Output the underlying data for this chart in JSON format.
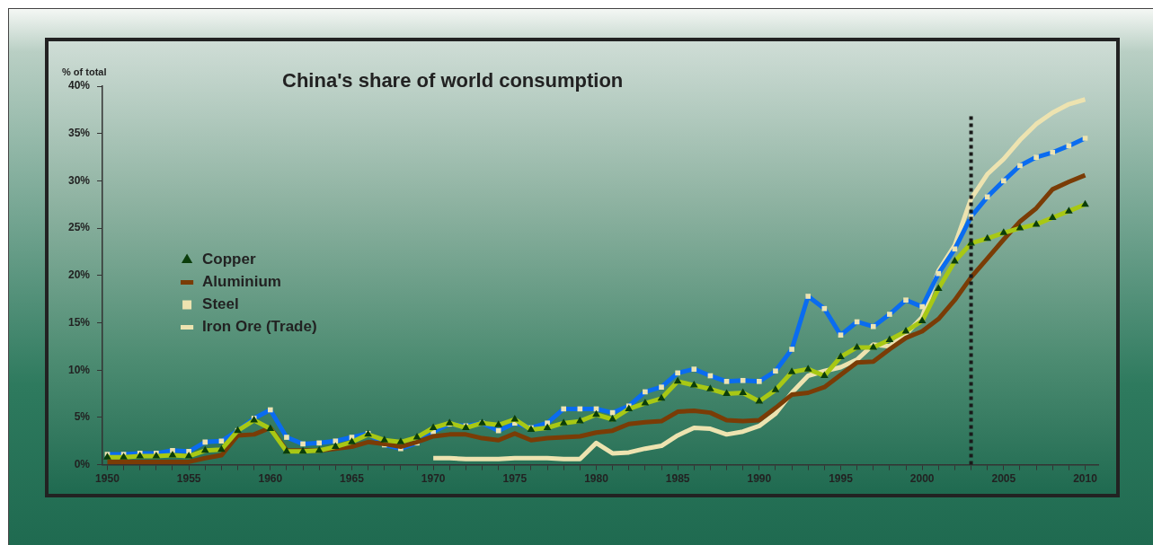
{
  "chart_data": {
    "type": "line",
    "title": "China's share of world consumption",
    "ylabel": "% of total",
    "x": [
      1950,
      1951,
      1952,
      1953,
      1954,
      1955,
      1956,
      1957,
      1958,
      1959,
      1960,
      1961,
      1962,
      1963,
      1964,
      1965,
      1966,
      1967,
      1968,
      1969,
      1970,
      1971,
      1972,
      1973,
      1974,
      1975,
      1976,
      1977,
      1978,
      1979,
      1980,
      1981,
      1982,
      1983,
      1984,
      1985,
      1986,
      1987,
      1988,
      1989,
      1990,
      1991,
      1992,
      1993,
      1994,
      1995,
      1996,
      1997,
      1998,
      1999,
      2000,
      2001,
      2002,
      2003,
      2004,
      2005,
      2006,
      2007,
      2008,
      2009,
      2010
    ],
    "series": [
      {
        "name": "Copper",
        "color": "#a8c814",
        "marker": "triangle",
        "colors": [
          "#0b3d0b",
          "#0b3d0b",
          "#0b3d0b",
          "#0b3d0b",
          "#0b3d0b",
          "#0b3d0b",
          "#0b3d0b",
          "#0b3d0b",
          "#0b3d0b",
          "#0b3d0b",
          "#0b3d0b",
          "#0b3d0b",
          "#0b3d0b",
          "#0b3d0b",
          "#0b3d0b",
          "#0b3d0b",
          "#0b3d0b",
          "#0b3d0b",
          "#0b3d0b",
          "#0b3d0b",
          "#0b3d0b",
          "#0b3d0b",
          "#0b3d0b",
          "#0b3d0b",
          "#0b3d0b",
          "#0b3d0b",
          "#0b3d0b",
          "#0b3d0b",
          "#0b3d0b",
          "#0b3d0b",
          "#0b3d0b",
          "#0b3d0b",
          "#0b3d0b",
          "#0b3d0b",
          "#0b3d0b",
          "#0b3d0b",
          "#0b3d0b",
          "#0b3d0b",
          "#0b3d0b",
          "#0b3d0b",
          "#0b3d0b",
          "#0b3d0b",
          "#0b3d0b",
          "#0b3d0b",
          "#0b3d0b",
          "#0b3d0b",
          "#0b3d0b",
          "#0b3d0b",
          "#0b3d0b",
          "#0b3d0b",
          "#0b3d0b",
          "#0b3d0b",
          "#0b3d0b",
          "#0b3d0b",
          "#0b3d0b",
          "#0b3d0b",
          "#0b3d0b",
          "#0b3d0b",
          "#0b3d0b",
          "#0b3d0b",
          "#0b3d0b"
        ],
        "values": [
          0.8,
          0.8,
          0.9,
          0.9,
          1.0,
          0.9,
          1.5,
          1.6,
          3.6,
          4.7,
          3.8,
          1.4,
          1.4,
          1.5,
          1.9,
          2.4,
          3.2,
          2.6,
          2.4,
          2.9,
          3.9,
          4.4,
          3.9,
          4.4,
          4.2,
          4.8,
          3.7,
          3.9,
          4.4,
          4.6,
          5.3,
          4.8,
          5.9,
          6.5,
          7.0,
          8.8,
          8.4,
          8.0,
          7.5,
          7.6,
          6.7,
          7.9,
          9.8,
          10.1,
          9.4,
          11.4,
          12.4,
          12.4,
          13.2,
          14.1,
          15.2,
          18.6,
          21.5,
          23.4,
          23.9,
          24.5,
          25.0,
          25.4,
          26.1,
          26.8,
          27.5
        ]
      },
      {
        "name": "Aluminium",
        "color": "#7a3c06",
        "marker": "none",
        "values": [
          0.3,
          0.3,
          0.3,
          0.3,
          0.3,
          0.3,
          0.7,
          1.0,
          3.1,
          3.2,
          3.9,
          1.5,
          1.5,
          1.5,
          1.7,
          1.9,
          2.4,
          2.2,
          1.9,
          2.4,
          3.0,
          3.2,
          3.2,
          2.8,
          2.6,
          3.3,
          2.6,
          2.8,
          2.9,
          3.0,
          3.4,
          3.6,
          4.3,
          4.5,
          4.6,
          5.6,
          5.7,
          5.5,
          4.7,
          4.6,
          4.7,
          6.0,
          7.4,
          7.6,
          8.2,
          9.5,
          10.8,
          10.9,
          12.2,
          13.4,
          14.1,
          15.4,
          17.4,
          19.8,
          21.8,
          23.8,
          25.7,
          27.1,
          29.1,
          29.9,
          30.6
        ]
      },
      {
        "name": "Steel",
        "color": "#0a6cf0",
        "marker": "square",
        "colors": [
          "#ede3b0",
          "#ede3b0",
          "#ede3b0",
          "#ede3b0",
          "#ede3b0",
          "#ede3b0",
          "#ede3b0",
          "#ede3b0",
          "#ede3b0",
          "#ede3b0",
          "#ede3b0",
          "#ede3b0",
          "#ede3b0",
          "#ede3b0",
          "#ede3b0",
          "#ede3b0",
          "#ede3b0",
          "#ede3b0",
          "#ede3b0",
          "#ede3b0",
          "#ede3b0",
          "#ede3b0",
          "#ede3b0",
          "#ede3b0",
          "#ede3b0",
          "#ede3b0",
          "#ede3b0",
          "#ede3b0",
          "#ede3b0",
          "#ede3b0",
          "#ede3b0",
          "#ede3b0",
          "#ede3b0",
          "#ede3b0",
          "#ede3b0",
          "#ede3b0",
          "#ede3b0",
          "#ede3b0",
          "#ede3b0",
          "#ede3b0",
          "#ede3b0",
          "#ede3b0",
          "#ede3b0",
          "#ede3b0",
          "#ede3b0",
          "#ede3b0",
          "#ede3b0",
          "#ede3b0",
          "#ede3b0",
          "#ede3b0",
          "#ede3b0",
          "#ede3b0",
          "#ede3b0",
          "#ede3b0",
          "#ede3b0",
          "#ede3b0",
          "#ede3b0",
          "#ede3b0",
          "#ede3b0",
          "#ede3b0",
          "#ede3b0"
        ],
        "values": [
          1.1,
          1.1,
          1.2,
          1.2,
          1.5,
          1.4,
          2.4,
          2.5,
          3.6,
          4.9,
          5.8,
          2.9,
          2.2,
          2.3,
          2.5,
          2.9,
          3.3,
          2.1,
          1.7,
          2.3,
          3.5,
          4.3,
          4.1,
          4.4,
          3.6,
          4.4,
          3.9,
          4.4,
          5.9,
          5.9,
          5.9,
          5.5,
          6.2,
          7.7,
          8.2,
          9.7,
          10.1,
          9.4,
          8.8,
          8.9,
          8.8,
          9.9,
          12.2,
          17.8,
          16.5,
          13.7,
          15.1,
          14.6,
          15.9,
          17.4,
          16.7,
          20.2,
          22.8,
          26.2,
          28.3,
          30.0,
          31.6,
          32.5,
          33.0,
          33.7,
          34.5
        ]
      },
      {
        "name": "Iron Ore (Trade)",
        "color": "#ede3b0",
        "marker": "none",
        "values": [
          null,
          null,
          null,
          null,
          null,
          null,
          null,
          null,
          null,
          null,
          null,
          null,
          null,
          null,
          null,
          null,
          null,
          null,
          null,
          null,
          0.7,
          0.7,
          0.6,
          0.6,
          0.6,
          0.7,
          0.7,
          0.7,
          0.6,
          0.6,
          2.3,
          1.2,
          1.3,
          1.7,
          2.0,
          3.1,
          3.9,
          3.8,
          3.2,
          3.5,
          4.1,
          5.4,
          7.6,
          9.4,
          9.9,
          10.3,
          11.1,
          12.7,
          12.5,
          13.8,
          15.6,
          20.5,
          23.2,
          28.1,
          30.7,
          32.3,
          34.3,
          36.0,
          37.2,
          38.1,
          38.6
        ]
      }
    ],
    "xlim": [
      1949.7,
      2010.8
    ],
    "xticks": [
      1950,
      {
        "value": 1951,
        "label": null
      },
      {
        "value": 1952,
        "label": null
      },
      {
        "value": 1953,
        "label": null
      },
      {
        "value": 1954,
        "label": null
      },
      1955,
      {
        "value": 1956,
        "label": null
      },
      {
        "value": 1957,
        "label": null
      },
      {
        "value": 1958,
        "label": null
      },
      {
        "value": 1959,
        "label": null
      },
      1960,
      {
        "value": 1961,
        "label": null
      },
      {
        "value": 1962,
        "label": null
      },
      {
        "value": 1963,
        "label": null
      },
      {
        "value": 1964,
        "label": null
      },
      1965,
      {
        "value": 1966,
        "label": null
      },
      {
        "value": 1967,
        "label": null
      },
      {
        "value": 1968,
        "label": null
      },
      {
        "value": 1969,
        "label": null
      },
      1970,
      {
        "value": 1971,
        "label": null
      },
      {
        "value": 1972,
        "label": null
      },
      {
        "value": 1973,
        "label": null
      },
      {
        "value": 1974,
        "label": null
      },
      1975,
      {
        "value": 1976,
        "label": null
      },
      {
        "value": 1977,
        "label": null
      },
      {
        "value": 1978,
        "label": null
      },
      {
        "value": 1979,
        "label": null
      },
      1980,
      {
        "value": 1981,
        "label": null
      },
      {
        "value": 1982,
        "label": null
      },
      {
        "value": 1983,
        "label": null
      },
      {
        "value": 1984,
        "label": null
      },
      1985,
      {
        "value": 1986,
        "label": null
      },
      {
        "value": 1987,
        "label": null
      },
      {
        "value": 1988,
        "label": null
      },
      {
        "value": 1989,
        "label": null
      },
      1990,
      {
        "value": 1991,
        "label": null
      },
      {
        "value": 1992,
        "label": null
      },
      {
        "value": 1993,
        "label": null
      },
      {
        "value": 1994,
        "label": null
      },
      1995,
      {
        "value": 1996,
        "label": null
      },
      {
        "value": 1997,
        "label": null
      },
      {
        "value": 1998,
        "label": null
      },
      {
        "value": 1999,
        "label": null
      },
      2000,
      {
        "value": 2001,
        "label": null
      },
      {
        "value": 2002,
        "label": null
      },
      {
        "value": 2003,
        "label": null
      },
      {
        "value": 2004,
        "label": null
      },
      2005,
      {
        "value": 2006,
        "label": null
      },
      {
        "value": 2007,
        "label": null
      },
      {
        "value": 2008,
        "label": null
      },
      {
        "value": 2009,
        "label": null
      },
      2010
    ],
    "ylim": [
      0,
      40
    ],
    "yticks": [
      {
        "value": 0,
        "label": "0%"
      },
      {
        "value": 5,
        "label": "5%"
      },
      {
        "value": 10,
        "label": "10%"
      },
      {
        "value": 15,
        "label": "15%"
      },
      {
        "value": 20,
        "label": "20%"
      },
      {
        "value": 25,
        "label": "25%"
      },
      {
        "value": 30,
        "label": "30%"
      },
      {
        "value": 35,
        "label": "35%"
      },
      {
        "value": 40,
        "label": "40%"
      }
    ],
    "ref_lines": [
      {
        "axis": "x",
        "value": 2003,
        "color": "#1a1a1a",
        "line_style": "dotted"
      }
    ],
    "grid": false,
    "legend": "left",
    "line_style": "solid"
  }
}
